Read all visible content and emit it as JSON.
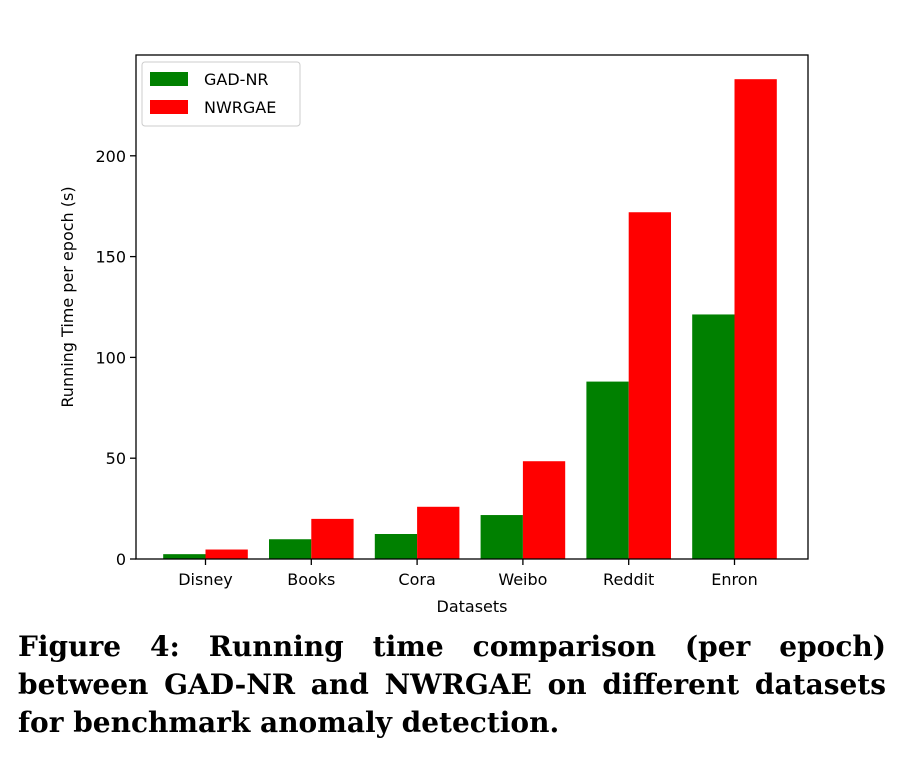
{
  "caption": "Figure 4: Running time comparison (per epoch) between GAD-NR and NWRGAE on different datasets for benchmark anomaly detection.",
  "chart_data": {
    "type": "bar",
    "categories": [
      "Disney",
      "Books",
      "Cora",
      "Weibo",
      "Reddit",
      "Enron"
    ],
    "series": [
      {
        "name": "GAD-NR",
        "color": "#008000",
        "values": [
          2.4,
          9.8,
          12.4,
          21.8,
          88.0,
          121.3
        ]
      },
      {
        "name": "NWRGAE",
        "color": "#ff0000",
        "values": [
          4.7,
          19.9,
          25.9,
          48.5,
          172.0,
          238.0
        ]
      }
    ],
    "xlabel": "Datasets",
    "ylabel": "Running Time per epoch (s)",
    "ylim": [
      0,
      250
    ],
    "yticks": [
      0,
      50,
      100,
      150,
      200
    ],
    "legend_position": "top-left",
    "grid": false
  }
}
